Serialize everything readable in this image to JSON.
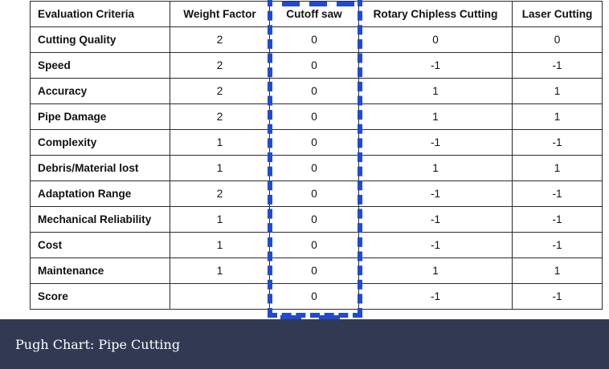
{
  "table": {
    "headers": [
      "Evaluation Criteria",
      "Weight Factor",
      "Cutoff saw",
      "Rotary Chipless Cutting",
      "Laser Cutting"
    ],
    "rows": [
      {
        "criteria": "Cutting Quality",
        "weight": "2",
        "cutoff": "0",
        "rotary": "0",
        "laser": "0"
      },
      {
        "criteria": "Speed",
        "weight": "2",
        "cutoff": "0",
        "rotary": "-1",
        "laser": "-1"
      },
      {
        "criteria": "Accuracy",
        "weight": "2",
        "cutoff": "0",
        "rotary": "1",
        "laser": "1"
      },
      {
        "criteria": "Pipe Damage",
        "weight": "2",
        "cutoff": "0",
        "rotary": "1",
        "laser": "1"
      },
      {
        "criteria": "Complexity",
        "weight": "1",
        "cutoff": "0",
        "rotary": "-1",
        "laser": "-1"
      },
      {
        "criteria": "Debris/Material lost",
        "weight": "1",
        "cutoff": "0",
        "rotary": "1",
        "laser": "1"
      },
      {
        "criteria": "Adaptation Range",
        "weight": "2",
        "cutoff": "0",
        "rotary": "-1",
        "laser": "-1"
      },
      {
        "criteria": "Mechanical Reliability",
        "weight": "1",
        "cutoff": "0",
        "rotary": "-1",
        "laser": "-1"
      },
      {
        "criteria": "Cost",
        "weight": "1",
        "cutoff": "0",
        "rotary": "-1",
        "laser": "-1"
      },
      {
        "criteria": "Maintenance",
        "weight": "1",
        "cutoff": "0",
        "rotary": "1",
        "laser": "1"
      },
      {
        "criteria": "Score",
        "weight": "",
        "cutoff": "0",
        "rotary": "-1",
        "laser": "-1"
      }
    ]
  },
  "highlight": {
    "column": "Cutoff saw",
    "color": "#1f49d6"
  },
  "caption": {
    "text": "Pugh Chart: Pipe Cutting",
    "background": "#323a53"
  }
}
